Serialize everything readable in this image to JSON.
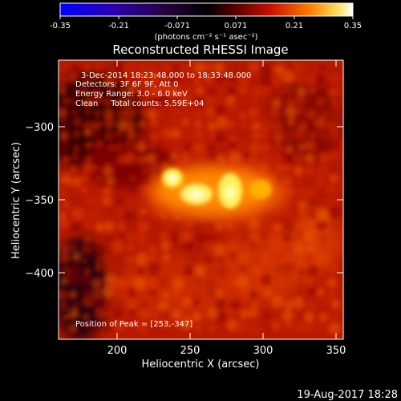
{
  "colorbar": {
    "ticks": [
      "-0.35",
      "-0.21",
      "-0.071",
      "0.071",
      "0.21",
      "0.35"
    ],
    "unit_label": "(photons cm⁻² s⁻¹ asec⁻²)"
  },
  "title": "Reconstructed RHESSI Image",
  "info": {
    "time_range": "3-Dec-2014 18:23:48.000 to 18:33:48.000",
    "detectors": "Detectors: 3F 6F 9F, Att 0",
    "energy_range": "Energy Range: 3.0 - 6.0 keV",
    "method_counts": "Clean     Total counts: 5.59E+04",
    "peak": "Position of Peak = [253,-347]"
  },
  "axes": {
    "xlabel": "Heliocentric X (arcsec)",
    "ylabel": "Heliocentric Y (arcsec)",
    "xticks": [
      "200",
      "250",
      "300",
      "350"
    ],
    "yticks": [
      "−300",
      "−350",
      "−400"
    ],
    "xrange": [
      160,
      355
    ],
    "yrange": [
      -448,
      -260
    ]
  },
  "timestamp": "19-Aug-2017 18:28"
}
